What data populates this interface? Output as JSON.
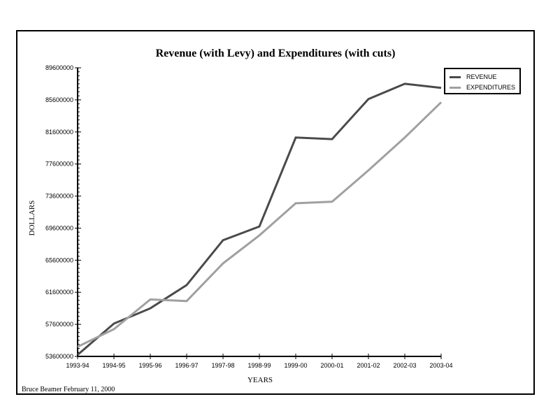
{
  "chart_data": {
    "type": "line",
    "title": "Revenue (with Levy) and Expenditures (with cuts)",
    "xlabel": "YEARS",
    "ylabel": "DOLLARS",
    "categories": [
      "1993-94",
      "1994-95",
      "1995-96",
      "1996-97",
      "1997-98",
      "1998-99",
      "1999-00",
      "2000-01",
      "2001-02",
      "2002-03",
      "2003-04"
    ],
    "yticks": [
      53600000,
      57600000,
      61600000,
      65600000,
      69600000,
      73600000,
      77600000,
      81600000,
      85600000,
      89600000
    ],
    "ylim": [
      53600000,
      89600000
    ],
    "series": [
      {
        "name": "REVENUE",
        "color": "#4a4a4a",
        "values": [
          53800000,
          57700000,
          59600000,
          62500000,
          68100000,
          69800000,
          80900000,
          80700000,
          85700000,
          87600000,
          87100000
        ]
      },
      {
        "name": "EXPENDITURES",
        "color": "#a0a0a0",
        "values": [
          54800000,
          57000000,
          60700000,
          60500000,
          65200000,
          68700000,
          72700000,
          72900000,
          76800000,
          80900000,
          85300000
        ]
      }
    ],
    "legend": "top-right",
    "grid": false
  },
  "footer": "Bruce Beamer February 11, 2000"
}
